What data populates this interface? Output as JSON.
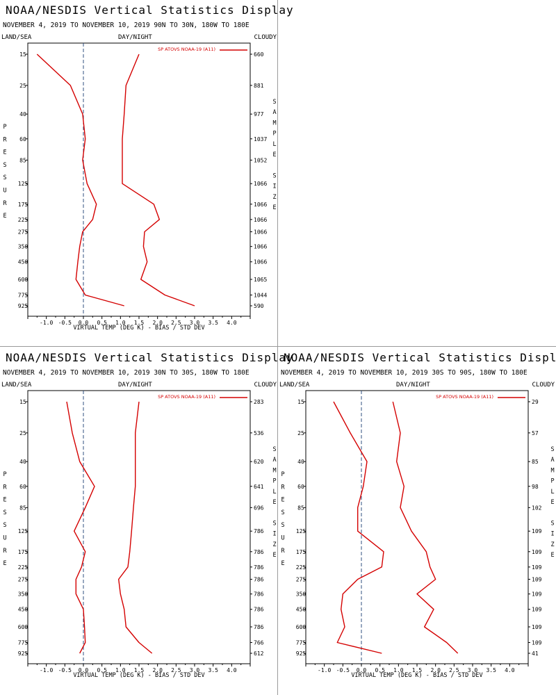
{
  "chart_data": [
    {
      "type": "line",
      "title": "NOAA/NESDIS Vertical Statistics Display",
      "subtitle": "NOVEMBER 4, 2019 TO NOVEMBER 10, 2019 90N TO 30N, 180W TO 180E",
      "header_left": "LAND/SEA",
      "header_center": "DAY/NIGHT",
      "header_right": "CLOUDY",
      "ylabel": "PRESSURE",
      "y2label": "SAMPLE SIZE",
      "xlabel": "VIRTUAL TEMP (DEG K) - BIAS / STD DEV",
      "legend": "SP ATOVS NOAA-19 (A11)",
      "xlim": [
        -1.5,
        4.5
      ],
      "xticks": [
        "-1.0",
        "-0.5",
        "0.0",
        "0.5",
        "1.0",
        "1.5",
        "2.0",
        "2.5",
        "3.0",
        "3.5",
        "4.0"
      ],
      "levels": [
        "15",
        "25",
        "40",
        "60",
        "85",
        "125",
        "175",
        "225",
        "275",
        "350",
        "450",
        "600",
        "775",
        "925"
      ],
      "sample_size": [
        "660",
        "881",
        "977",
        "1037",
        "1052",
        "1066",
        "1066",
        "1066",
        "1066",
        "1066",
        "1066",
        "1065",
        "1044",
        "590"
      ],
      "series": [
        {
          "values": [
            -1.25,
            -0.35,
            -0.02,
            0.05,
            -0.02,
            0.1,
            0.35,
            0.25,
            -0.02,
            -0.1,
            -0.15,
            -0.2,
            0.05,
            1.1
          ]
        },
        {
          "values": [
            1.5,
            1.15,
            1.1,
            1.05,
            1.05,
            1.05,
            1.9,
            2.05,
            1.65,
            1.62,
            1.72,
            1.55,
            2.2,
            3.0
          ]
        }
      ]
    },
    {
      "type": "line",
      "title": "NOAA/NESDIS Vertical Statistics Display",
      "subtitle": "NOVEMBER 4, 2019 TO NOVEMBER 10, 2019 30N TO 30S, 180W TO 180E",
      "header_left": "LAND/SEA",
      "header_center": "DAY/NIGHT",
      "header_right": "CLOUDY",
      "ylabel": "PRESSURE",
      "y2label": "SAMPLE SIZE",
      "xlabel": "VIRTUAL TEMP (DEG K) - BIAS / STD DEV",
      "legend": "SP ATOVS NOAA-19 (A11)",
      "xlim": [
        -1.5,
        4.5
      ],
      "xticks": [
        "-1.0",
        "-0.5",
        "0.0",
        "0.5",
        "1.0",
        "1.5",
        "2.0",
        "2.5",
        "3.0",
        "3.5",
        "4.0"
      ],
      "levels": [
        "15",
        "25",
        "40",
        "60",
        "85",
        "125",
        "175",
        "225",
        "275",
        "350",
        "450",
        "600",
        "775",
        "925"
      ],
      "sample_size": [
        "283",
        "536",
        "620",
        "641",
        "696",
        "786",
        "786",
        "786",
        "786",
        "786",
        "786",
        "786",
        "766",
        "612"
      ],
      "series": [
        {
          "values": [
            -0.45,
            -0.3,
            -0.1,
            0.3,
            0.05,
            -0.25,
            0.05,
            -0.05,
            -0.2,
            -0.2,
            0.0,
            0.03,
            0.05,
            -0.1
          ]
        },
        {
          "values": [
            1.5,
            1.4,
            1.4,
            1.4,
            1.35,
            1.3,
            1.25,
            1.2,
            0.95,
            1.0,
            1.1,
            1.15,
            1.5,
            1.85
          ]
        }
      ]
    },
    {
      "type": "line",
      "title": "NOAA/NESDIS Vertical Statistics Display",
      "subtitle": "NOVEMBER 4, 2019 TO NOVEMBER 10, 2019 30S TO 90S, 180W TO 180E",
      "header_left": "LAND/SEA",
      "header_center": "DAY/NIGHT",
      "header_right": "CLOUDY",
      "ylabel": "PRESSURE",
      "y2label": "SAMPLE SIZE",
      "xlabel": "VIRTUAL TEMP (DEG K) - BIAS / STD DEV",
      "legend": "SP ATOVS NOAA-19 (A11)",
      "xlim": [
        -1.5,
        4.5
      ],
      "xticks": [
        "-1.0",
        "-0.5",
        "0.0",
        "0.5",
        "1.0",
        "1.5",
        "2.0",
        "2.5",
        "3.0",
        "3.5",
        "4.0"
      ],
      "levels": [
        "15",
        "25",
        "40",
        "60",
        "85",
        "125",
        "175",
        "225",
        "275",
        "350",
        "450",
        "600",
        "775",
        "925"
      ],
      "sample_size": [
        "29",
        "57",
        "85",
        "98",
        "102",
        "109",
        "109",
        "109",
        "109",
        "109",
        "109",
        "109",
        "109",
        "41"
      ],
      "series": [
        {
          "values": [
            -0.75,
            -0.3,
            0.15,
            0.05,
            -0.1,
            -0.1,
            0.6,
            0.55,
            -0.1,
            -0.5,
            -0.55,
            -0.45,
            -0.65,
            0.55
          ]
        },
        {
          "values": [
            0.85,
            1.05,
            0.95,
            1.15,
            1.05,
            1.35,
            1.75,
            1.85,
            2.0,
            1.5,
            1.95,
            1.7,
            2.3,
            2.6
          ]
        }
      ]
    }
  ]
}
